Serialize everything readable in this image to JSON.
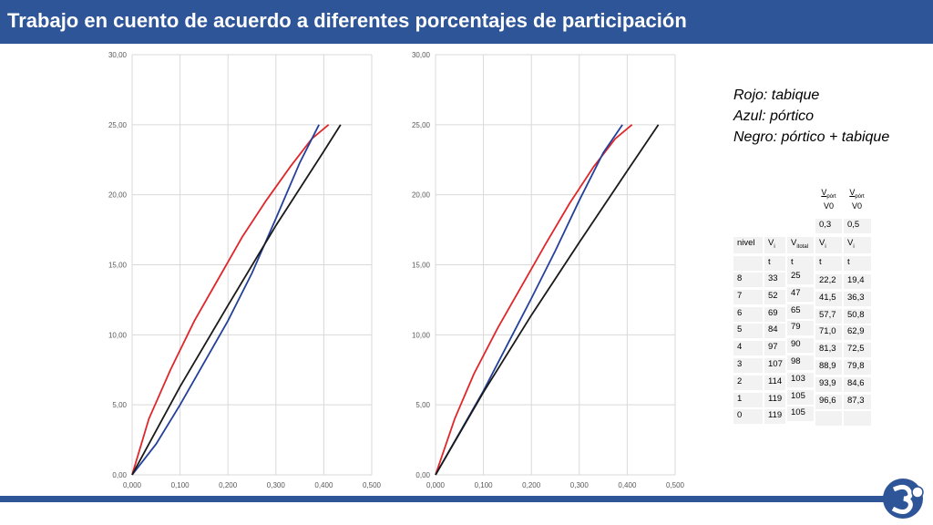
{
  "header": {
    "title": "Trabajo en cuento de acuerdo a diferentes porcentajes de participación"
  },
  "legend": [
    "Rojo: tabique",
    "Azul: pórtico",
    "Negro: pórtico + tabique"
  ],
  "colors": {
    "header": "#2e5597",
    "red": "#e0262a",
    "blue": "#23409a",
    "black": "#1a1a1a",
    "grid": "#d9d9d9"
  },
  "chart_data": [
    {
      "type": "line",
      "xlim": [
        0,
        0.5
      ],
      "ylim": [
        0,
        30
      ],
      "xticks": [
        "0,000",
        "0,100",
        "0,200",
        "0,300",
        "0,400",
        "0,500"
      ],
      "yticks": [
        "0,00",
        "5,00",
        "10,00",
        "15,00",
        "20,00",
        "25,00",
        "30,00"
      ],
      "grid": true,
      "series": [
        {
          "color": "#e0262a",
          "x": [
            0,
            0.035,
            0.08,
            0.13,
            0.18,
            0.23,
            0.28,
            0.33,
            0.375,
            0.41
          ],
          "y": [
            0,
            4,
            7.5,
            11,
            14,
            17,
            19.6,
            22,
            24,
            25
          ]
        },
        {
          "color": "#23409a",
          "x": [
            0,
            0.05,
            0.1,
            0.15,
            0.2,
            0.25,
            0.3,
            0.35,
            0.39
          ],
          "y": [
            0,
            2.2,
            5,
            8,
            11,
            14.4,
            18.3,
            22.3,
            25
          ]
        },
        {
          "color": "#1a1a1a",
          "x": [
            0,
            0.1,
            0.2,
            0.3,
            0.4,
            0.435
          ],
          "y": [
            0,
            6.3,
            12.1,
            17.8,
            23.1,
            25
          ]
        }
      ]
    },
    {
      "type": "line",
      "xlim": [
        0,
        0.5
      ],
      "ylim": [
        0,
        30
      ],
      "xticks": [
        "0,000",
        "0,100",
        "0,200",
        "0,300",
        "0,400",
        "0,500"
      ],
      "yticks": [
        "0,00",
        "5,00",
        "10,00",
        "15,00",
        "20,00",
        "25,00",
        "30,00"
      ],
      "grid": true,
      "series": [
        {
          "color": "#e0262a",
          "x": [
            0,
            0.04,
            0.08,
            0.13,
            0.18,
            0.23,
            0.28,
            0.33,
            0.375,
            0.41
          ],
          "y": [
            0,
            4,
            7.2,
            10.5,
            13.5,
            16.5,
            19.4,
            22,
            24,
            25
          ]
        },
        {
          "color": "#23409a",
          "x": [
            0,
            0.05,
            0.1,
            0.15,
            0.2,
            0.25,
            0.3,
            0.35,
            0.39
          ],
          "y": [
            0,
            3,
            6,
            9.3,
            12.6,
            16,
            19.6,
            23,
            25
          ]
        },
        {
          "color": "#1a1a1a",
          "x": [
            0,
            0.1,
            0.2,
            0.3,
            0.4,
            0.465
          ],
          "y": [
            0,
            5.9,
            11.4,
            16.6,
            21.7,
            25
          ]
        }
      ]
    }
  ],
  "table": {
    "frac_top": {
      "num": "V",
      "num_sub": "pórt",
      "den": "V0"
    },
    "ratio_values": [
      "0,3",
      "0,5"
    ],
    "headers": [
      "nivel",
      "Vi",
      "Vitotal",
      "Vi",
      "Vi"
    ],
    "header_subs": [
      "",
      "i",
      "itotal",
      "i",
      "i"
    ],
    "header_mains": [
      "nivel",
      "V",
      "V",
      "V",
      "V"
    ],
    "units": [
      "",
      "t",
      "t",
      "t",
      "t"
    ],
    "rows": [
      [
        "8",
        "33",
        "25",
        "22,2",
        "19,4"
      ],
      [
        "7",
        "52",
        "47",
        "41,5",
        "36,3"
      ],
      [
        "6",
        "69",
        "65",
        "57,7",
        "50,8"
      ],
      [
        "5",
        "84",
        "79",
        "71,0",
        "62,9"
      ],
      [
        "4",
        "97",
        "90",
        "81,3",
        "72,5"
      ],
      [
        "3",
        "107",
        "98",
        "88,9",
        "79,8"
      ],
      [
        "2",
        "114",
        "103",
        "93,9",
        "84,6"
      ],
      [
        "1",
        "119",
        "105",
        "96,6",
        "87,3"
      ],
      [
        "0",
        "119",
        "105",
        "",
        ""
      ]
    ]
  }
}
